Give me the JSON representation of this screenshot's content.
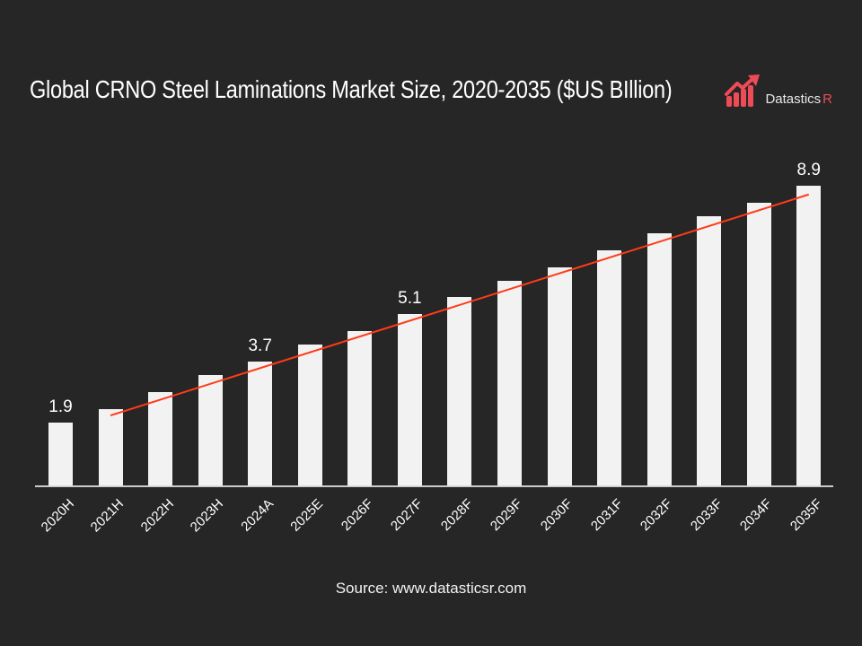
{
  "title": "Global CRNO Steel Laminations Market Size, 2020-2035 ($US BIllion)",
  "logo": {
    "icon": "rising-bar-chart-arrow-icon",
    "brand": "Datastics",
    "brand_suffix": "R"
  },
  "source": "Source: www.datasticsr.com",
  "colors": {
    "background": "#262626",
    "bar": "#f2f2f2",
    "trendline": "#ff3b17",
    "logo_accent": "#ef4b57",
    "text": "#ffffff",
    "axis_line": "#d9d9d9",
    "logo_text": "#e8e8e8"
  },
  "chart_data": {
    "type": "bar",
    "title": "Global CRNO Steel Laminations Market Size, 2020-2035 ($US BIllion)",
    "unit": "$US Billion",
    "categories": [
      "2020H",
      "2021H",
      "2022H",
      "2023H",
      "2024A",
      "2025E",
      "2026F",
      "2027F",
      "2028F",
      "2029F",
      "2030F",
      "2031F",
      "2032F",
      "2033F",
      "2034F",
      "2035F"
    ],
    "values": [
      1.9,
      2.3,
      2.8,
      3.3,
      3.7,
      4.2,
      4.6,
      5.1,
      5.6,
      6.1,
      6.5,
      7.0,
      7.5,
      8.0,
      8.4,
      8.9
    ],
    "visible_value_labels": [
      {
        "category": "2020H",
        "text": "1.9"
      },
      {
        "category": "2024A",
        "text": "3.7"
      },
      {
        "category": "2027F",
        "text": "5.1"
      },
      {
        "category": "2035F",
        "text": "8.9"
      }
    ],
    "trendline": {
      "type": "linear",
      "start_category": "2021H",
      "start_value": 2.1,
      "end_category": "2035F",
      "end_value": 8.65
    },
    "ylim": [
      0,
      9.6
    ],
    "xlabel": "",
    "ylabel": "",
    "grid": false,
    "legend": false,
    "y_axis_visible": false,
    "x_tick_rotation_deg": 45
  }
}
